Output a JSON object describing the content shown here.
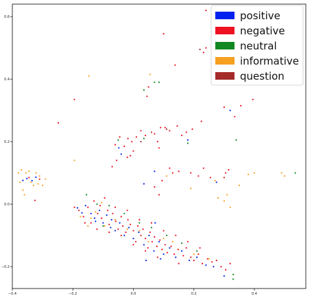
{
  "chart_data": {
    "type": "scatter",
    "title": "",
    "xlabel": "",
    "ylabel": "",
    "xlim": [
      -0.4,
      0.57
    ],
    "ylim": [
      -0.27,
      0.64
    ],
    "grid": false,
    "legend_position": "top-right",
    "x_ticks": [
      -0.4,
      -0.2,
      0.0,
      0.2,
      0.4
    ],
    "x_tick_labels": [
      "−0.4",
      "−0.2",
      "0.0",
      "0.2",
      "0.4"
    ],
    "y_ticks": [
      -0.2,
      0.0,
      0.2,
      0.4,
      0.6
    ],
    "y_tick_labels": [
      "−0.2",
      "0.0",
      "0.2",
      "0.4",
      "0.6"
    ],
    "series": [
      {
        "name": "positive",
        "color": "#0022ee",
        "points": [
          [
            -0.365,
            0.076
          ],
          [
            -0.352,
            0.082
          ],
          [
            -0.335,
            0.075
          ],
          [
            -0.322,
            0.086
          ],
          [
            -0.185,
            -0.012
          ],
          [
            -0.17,
            -0.028
          ],
          [
            -0.158,
            -0.005
          ],
          [
            -0.14,
            -0.03
          ],
          [
            -0.128,
            -0.045
          ],
          [
            -0.112,
            -0.02
          ],
          [
            -0.1,
            -0.06
          ],
          [
            -0.088,
            -0.035
          ],
          [
            -0.072,
            -0.05
          ],
          [
            -0.06,
            -0.085
          ],
          [
            -0.045,
            -0.06
          ],
          [
            -0.03,
            -0.1
          ],
          [
            -0.015,
            -0.075
          ],
          [
            0.0,
            -0.11
          ],
          [
            0.018,
            -0.09
          ],
          [
            0.035,
            -0.13
          ],
          [
            0.052,
            -0.1
          ],
          [
            0.068,
            -0.15
          ],
          [
            0.085,
            -0.12
          ],
          [
            0.1,
            -0.16
          ],
          [
            0.12,
            -0.14
          ],
          [
            0.14,
            -0.17
          ],
          [
            0.16,
            -0.15
          ],
          [
            0.185,
            -0.18
          ],
          [
            0.21,
            -0.17
          ],
          [
            0.24,
            -0.195
          ],
          [
            0.265,
            -0.2
          ],
          [
            0.3,
            -0.23
          ],
          [
            -0.048,
            0.18
          ],
          [
            -0.04,
            0.16
          ],
          [
            0.042,
            -0.18
          ],
          [
            0.09,
            -0.175
          ],
          [
            0.07,
            0.105
          ],
          [
            0.275,
            0.07
          ],
          [
            0.18,
            0.205
          ],
          [
            0.32,
            0.3
          ],
          [
            0.035,
            0.065
          ],
          [
            0.072,
            -0.06
          ],
          [
            -0.125,
            -0.055
          ],
          [
            -0.075,
            -0.075
          ]
        ]
      },
      {
        "name": "negative",
        "color": "#ee1122",
        "points": [
          [
            0.24,
            0.62
          ],
          [
            0.1,
            0.545
          ],
          [
            0.24,
            0.5
          ],
          [
            0.232,
            0.485
          ],
          [
            0.138,
            0.445
          ],
          [
            -0.195,
            0.335
          ],
          [
            0.05,
            0.375
          ],
          [
            0.045,
            0.345
          ],
          [
            0.335,
            0.28
          ],
          [
            0.3,
            0.31
          ],
          [
            0.395,
            0.335
          ],
          [
            0.355,
            0.315
          ],
          [
            0.225,
            0.265
          ],
          [
            -0.248,
            0.26
          ],
          [
            0.195,
            0.24
          ],
          [
            0.175,
            0.23
          ],
          [
            0.12,
            0.235
          ],
          [
            0.105,
            0.245
          ],
          [
            0.145,
            0.25
          ],
          [
            0.16,
            0.22
          ],
          [
            0.09,
            0.245
          ],
          [
            0.07,
            0.225
          ],
          [
            0.04,
            0.22
          ],
          [
            0.025,
            0.235
          ],
          [
            0.01,
            0.215
          ],
          [
            -0.005,
            0.2
          ],
          [
            -0.018,
            0.21
          ],
          [
            -0.03,
            0.185
          ],
          [
            -0.045,
            0.215
          ],
          [
            -0.06,
            0.19
          ],
          [
            0.08,
            0.2
          ],
          [
            0.085,
            0.18
          ],
          [
            0.0,
            0.17
          ],
          [
            -0.01,
            0.155
          ],
          [
            -0.02,
            0.15
          ],
          [
            -0.055,
            0.14
          ],
          [
            -0.07,
            0.12
          ],
          [
            0.12,
            0.115
          ],
          [
            0.13,
            0.1
          ],
          [
            0.15,
            0.105
          ],
          [
            0.19,
            0.1
          ],
          [
            0.215,
            0.09
          ],
          [
            0.232,
            0.115
          ],
          [
            0.255,
            0.085
          ],
          [
            0.3,
            0.085
          ],
          [
            0.305,
            0.1
          ],
          [
            0.315,
            0.11
          ],
          [
            0.095,
            0.075
          ],
          [
            0.07,
            0.055
          ],
          [
            0.085,
            0.03
          ],
          [
            -0.325,
            0.012
          ],
          [
            -0.345,
            0.085
          ],
          [
            -0.31,
            0.08
          ],
          [
            -0.195,
            -0.01
          ],
          [
            -0.18,
            -0.02
          ],
          [
            -0.165,
            -0.04
          ],
          [
            -0.15,
            -0.01
          ],
          [
            -0.14,
            -0.06
          ],
          [
            -0.13,
            0.01
          ],
          [
            -0.118,
            -0.03
          ],
          [
            -0.105,
            -0.045
          ],
          [
            -0.095,
            0.02
          ],
          [
            -0.085,
            -0.02
          ],
          [
            -0.08,
            -0.065
          ],
          [
            -0.068,
            -0.03
          ],
          [
            -0.058,
            -0.055
          ],
          [
            -0.05,
            -0.08
          ],
          [
            -0.04,
            -0.04
          ],
          [
            -0.035,
            -0.07
          ],
          [
            -0.025,
            -0.09
          ],
          [
            -0.018,
            -0.05
          ],
          [
            -0.01,
            -0.065
          ],
          [
            0.0,
            -0.085
          ],
          [
            0.008,
            -0.12
          ],
          [
            0.015,
            -0.07
          ],
          [
            0.025,
            -0.1
          ],
          [
            0.032,
            -0.08
          ],
          [
            0.04,
            -0.11
          ],
          [
            0.048,
            -0.14
          ],
          [
            0.055,
            -0.09
          ],
          [
            0.062,
            -0.12
          ],
          [
            0.07,
            -0.105
          ],
          [
            0.078,
            -0.135
          ],
          [
            0.088,
            -0.115
          ],
          [
            0.095,
            -0.145
          ],
          [
            0.105,
            -0.13
          ],
          [
            0.112,
            -0.155
          ],
          [
            0.125,
            -0.135
          ],
          [
            0.135,
            -0.16
          ],
          [
            0.148,
            -0.145
          ],
          [
            0.165,
            -0.165
          ],
          [
            0.175,
            -0.14
          ],
          [
            0.19,
            -0.17
          ],
          [
            0.2,
            -0.18
          ],
          [
            0.215,
            -0.16
          ],
          [
            0.228,
            -0.19
          ],
          [
            0.245,
            -0.175
          ],
          [
            0.26,
            -0.185
          ],
          [
            0.275,
            -0.18
          ],
          [
            0.29,
            -0.2
          ],
          [
            0.305,
            -0.21
          ],
          [
            0.32,
            -0.19
          ],
          [
            -0.11,
            -0.005
          ],
          [
            -0.06,
            -0.01
          ],
          [
            -0.02,
            -0.02
          ],
          [
            0.02,
            -0.05
          ],
          [
            0.06,
            -0.06
          ],
          [
            0.1,
            -0.085
          ],
          [
            0.14,
            -0.1
          ],
          [
            0.18,
            -0.12
          ],
          [
            0.22,
            -0.14
          ],
          [
            -0.16,
            -0.06
          ],
          [
            -0.12,
            -0.08
          ],
          [
            -0.08,
            -0.09
          ],
          [
            -0.04,
            -0.1
          ],
          [
            0.0,
            -0.13
          ],
          [
            0.04,
            -0.15
          ],
          [
            0.08,
            -0.17
          ],
          [
            0.15,
            -0.19
          ]
        ]
      },
      {
        "name": "neutral",
        "color": "#118822",
        "points": [
          [
            0.07,
            0.39
          ],
          [
            0.085,
            0.39
          ],
          [
            0.035,
            0.365
          ],
          [
            0.34,
            0.205
          ],
          [
            0.535,
            0.1
          ],
          [
            0.33,
            -0.225
          ],
          [
            0.33,
            -0.24
          ],
          [
            0.035,
            0.21
          ],
          [
            -0.05,
            0.205
          ],
          [
            0.18,
            0.195
          ],
          [
            -0.155,
            0.03
          ],
          [
            -0.12,
            0.0
          ],
          [
            -0.08,
            -0.005
          ],
          [
            -0.03,
            -0.03
          ],
          [
            0.02,
            -0.06
          ],
          [
            0.06,
            -0.075
          ],
          [
            0.11,
            -0.1
          ],
          [
            0.16,
            -0.125
          ],
          [
            0.21,
            -0.15
          ],
          [
            -0.1,
            -0.07
          ]
        ]
      },
      {
        "name": "informative",
        "color": "#f5a020",
        "points": [
          [
            -0.147,
            0.41
          ],
          [
            0.055,
            0.415
          ],
          [
            -0.38,
            0.1
          ],
          [
            -0.37,
            0.11
          ],
          [
            -0.355,
            0.1
          ],
          [
            -0.365,
            0.045
          ],
          [
            -0.36,
            0.03
          ],
          [
            -0.345,
            0.105
          ],
          [
            -0.338,
            0.07
          ],
          [
            -0.33,
            0.06
          ],
          [
            -0.322,
            0.1
          ],
          [
            -0.315,
            0.065
          ],
          [
            -0.31,
            0.09
          ],
          [
            -0.3,
            0.06
          ],
          [
            -0.375,
            0.07
          ],
          [
            -0.29,
            0.08
          ],
          [
            -0.195,
            0.14
          ],
          [
            0.11,
            0.09
          ],
          [
            0.19,
            0.05
          ],
          [
            0.27,
            0.075
          ],
          [
            0.31,
            0.03
          ],
          [
            0.35,
            0.06
          ],
          [
            0.38,
            0.095
          ],
          [
            0.4,
            0.1
          ],
          [
            0.49,
            0.1
          ],
          [
            0.5,
            0.09
          ],
          [
            0.28,
            0.02
          ],
          [
            0.3,
            0.01
          ],
          [
            0.32,
            -0.01
          ],
          [
            -0.175,
            -0.04
          ],
          [
            -0.15,
            -0.07
          ],
          [
            -0.125,
            -0.025
          ],
          [
            -0.095,
            -0.07
          ],
          [
            -0.06,
            -0.05
          ],
          [
            -0.02,
            -0.08
          ],
          [
            0.02,
            -0.085
          ],
          [
            0.05,
            -0.12
          ],
          [
            0.1,
            -0.11
          ],
          [
            0.13,
            -0.12
          ],
          [
            0.2,
            -0.16
          ],
          [
            0.25,
            -0.175
          ],
          [
            -0.105,
            0.005
          ],
          [
            -0.14,
            -0.045
          ]
        ]
      },
      {
        "name": "question",
        "color": "#a52a2a",
        "points": [
          [
            0.06,
            0.23
          ],
          [
            0.22,
            0.495
          ],
          [
            0.025,
            0.2
          ],
          [
            0.11,
            0.24
          ]
        ]
      }
    ]
  }
}
